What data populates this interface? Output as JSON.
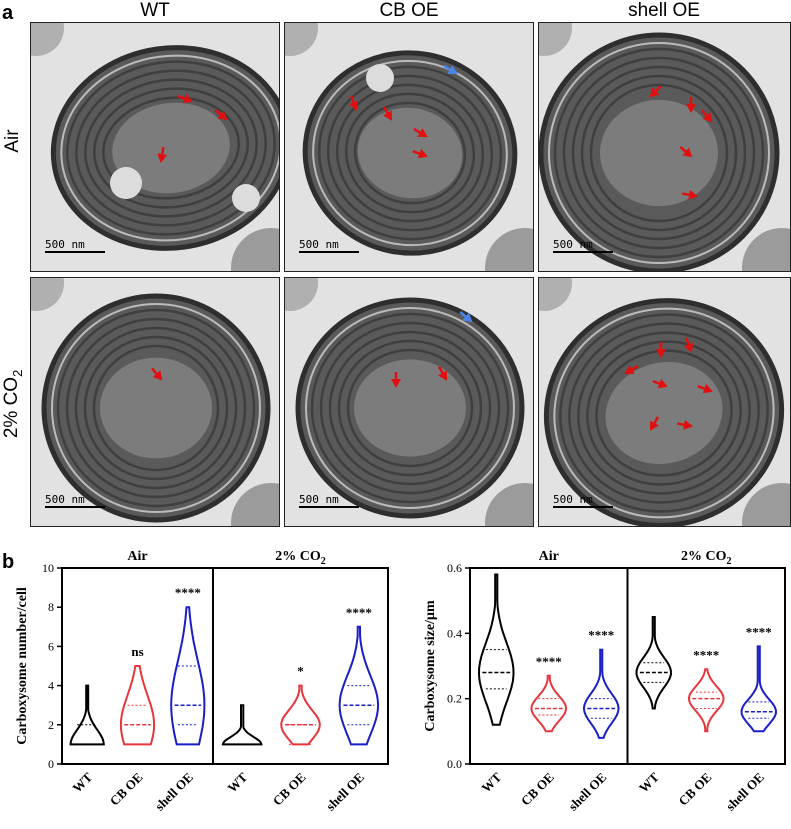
{
  "panel_a": {
    "letter": "a",
    "columns": [
      "WT",
      "CB OE",
      "shell OE"
    ],
    "rows": [
      "Air",
      "2% CO2"
    ],
    "scale_bar": "500 nm"
  },
  "panel_b": {
    "letter": "b"
  },
  "colors": {
    "WT": "#000000",
    "CB OE": "#e8353a",
    "shell OE": "#1a1ec8",
    "arrow_red": "#e01010",
    "arrow_blue": "#4a86e8"
  },
  "chart_data": [
    {
      "type": "violin",
      "ylabel": "Carboxysome number/cell",
      "ylim": [
        0,
        10
      ],
      "yticks": [
        0,
        2,
        4,
        6,
        8,
        10
      ],
      "groups": [
        {
          "title": "Air",
          "categories": [
            "WT",
            "CB OE",
            "shell OE"
          ],
          "series": [
            {
              "category": "WT",
              "min": 1,
              "max": 4,
              "median": 1,
              "q1": 1,
              "q3": 2,
              "significance": ""
            },
            {
              "category": "CB OE",
              "min": 1,
              "max": 5,
              "median": 2,
              "q1": 1,
              "q3": 3,
              "significance": "ns"
            },
            {
              "category": "shell OE",
              "min": 1,
              "max": 8,
              "median": 3,
              "q1": 2,
              "q3": 5,
              "significance": "****"
            }
          ]
        },
        {
          "title": "2% CO2",
          "categories": [
            "WT",
            "CB OE",
            "shell OE"
          ],
          "series": [
            {
              "category": "WT",
              "min": 1,
              "max": 3,
              "median": 1,
              "q1": 1,
              "q3": 1,
              "significance": ""
            },
            {
              "category": "CB OE",
              "min": 1,
              "max": 4,
              "median": 2,
              "q1": 1,
              "q3": 2,
              "significance": "*"
            },
            {
              "category": "shell OE",
              "min": 1,
              "max": 7,
              "median": 3,
              "q1": 2,
              "q3": 4,
              "significance": "****"
            }
          ]
        }
      ]
    },
    {
      "type": "violin",
      "ylabel": "Carboxysome size/µm",
      "ylim": [
        0,
        0.6
      ],
      "yticks": [
        0.0,
        0.2,
        0.4,
        0.6
      ],
      "groups": [
        {
          "title": "Air",
          "categories": [
            "WT",
            "CB OE",
            "shell OE"
          ],
          "series": [
            {
              "category": "WT",
              "min": 0.12,
              "max": 0.58,
              "median": 0.28,
              "q1": 0.23,
              "q3": 0.35,
              "significance": ""
            },
            {
              "category": "CB OE",
              "min": 0.1,
              "max": 0.27,
              "median": 0.17,
              "q1": 0.15,
              "q3": 0.2,
              "significance": "****"
            },
            {
              "category": "shell OE",
              "min": 0.08,
              "max": 0.35,
              "median": 0.17,
              "q1": 0.14,
              "q3": 0.2,
              "significance": "****"
            }
          ]
        },
        {
          "title": "2% CO2",
          "categories": [
            "WT",
            "CB OE",
            "shell OE"
          ],
          "series": [
            {
              "category": "WT",
              "min": 0.17,
              "max": 0.45,
              "median": 0.28,
              "q1": 0.25,
              "q3": 0.31,
              "significance": ""
            },
            {
              "category": "CB OE",
              "min": 0.1,
              "max": 0.29,
              "median": 0.2,
              "q1": 0.17,
              "q3": 0.22,
              "significance": "****"
            },
            {
              "category": "shell OE",
              "min": 0.1,
              "max": 0.36,
              "median": 0.16,
              "q1": 0.14,
              "q3": 0.19,
              "significance": "****"
            }
          ]
        }
      ]
    }
  ]
}
